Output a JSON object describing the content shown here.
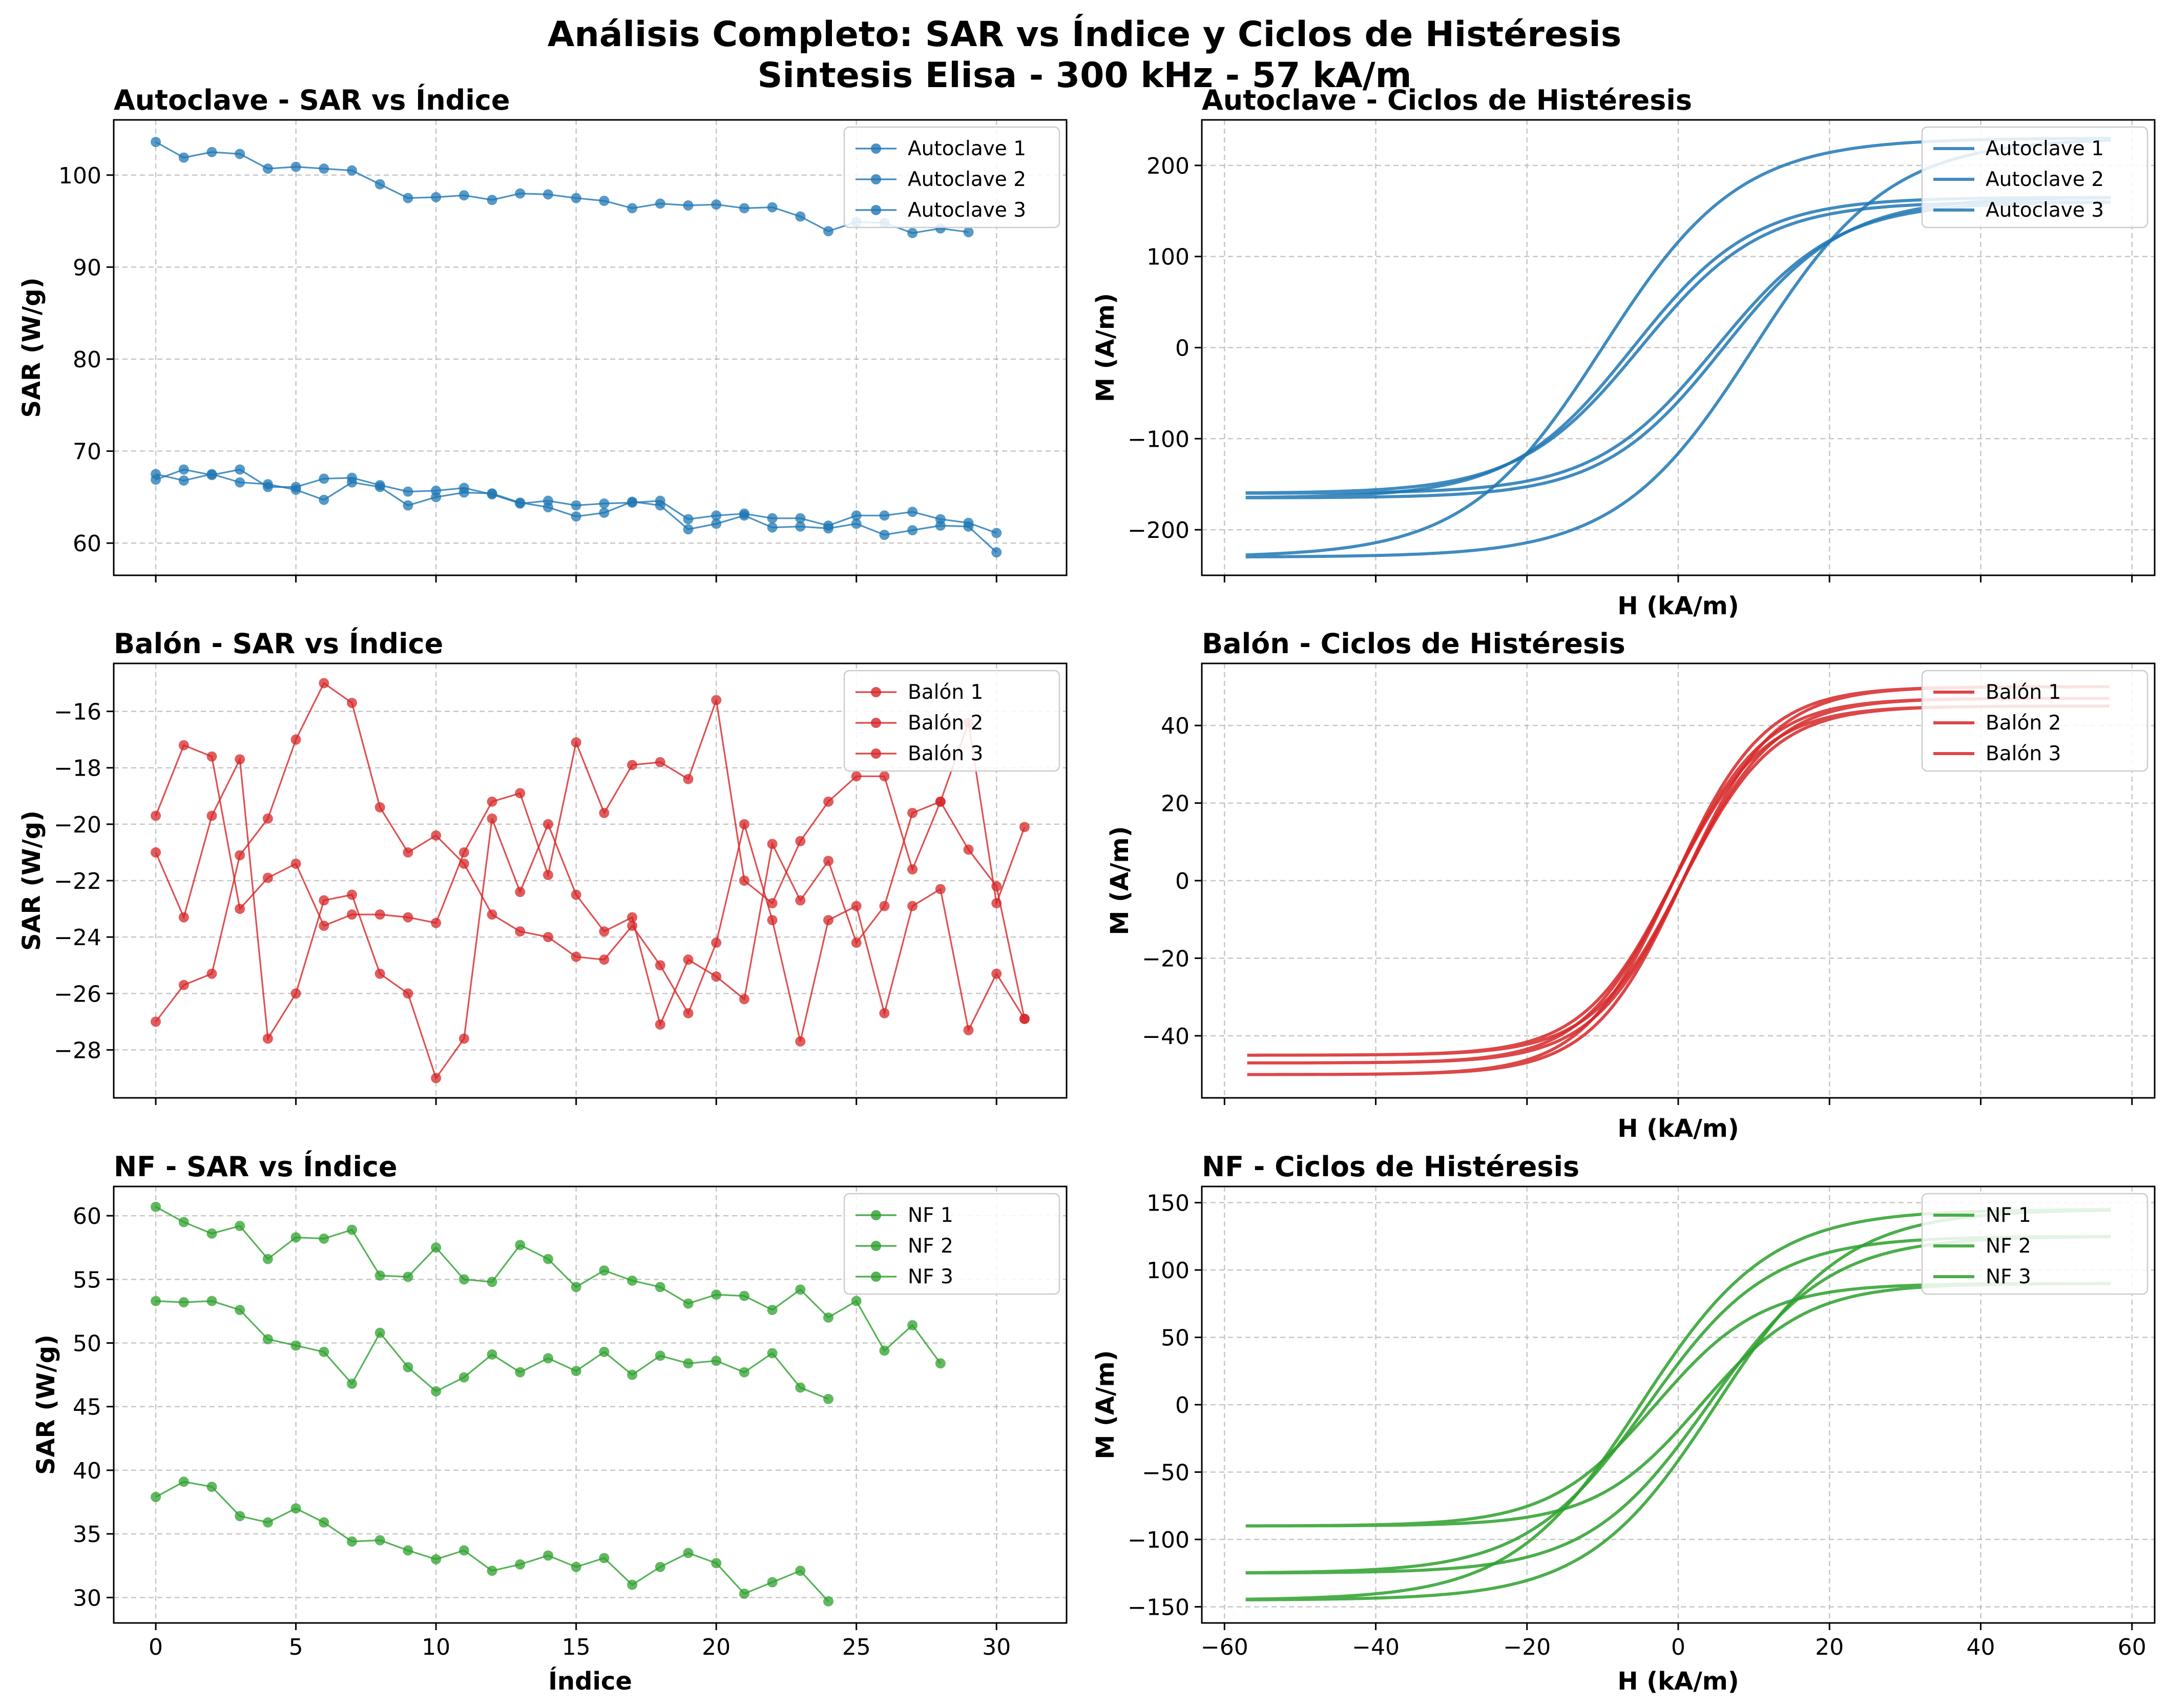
{
  "suptitle": [
    "Análisis Completo: SAR vs Índice y Ciclos de Histéresis",
    "Sintesis Elisa - 300 kHz - 57 kA/m"
  ],
  "chart_data": [
    {
      "type": "line",
      "title": "Autoclave - SAR vs Índice",
      "xlabel": "",
      "ylabel": "SAR (W/g)",
      "xlim": [
        -1.5,
        32.5
      ],
      "ylim": [
        56.5,
        106
      ],
      "xticks": [
        0,
        5,
        10,
        15,
        20,
        25,
        30
      ],
      "show_xticklabels": false,
      "yticks": [
        60,
        70,
        80,
        90,
        100
      ],
      "grid": true,
      "legend": "top-right",
      "color": "#1f77b4",
      "series": [
        {
          "name": "Autoclave 1",
          "x": [
            0,
            1,
            2,
            3,
            4,
            5,
            6,
            7,
            8,
            9,
            10,
            11,
            12,
            13,
            14,
            15,
            16,
            17,
            18,
            19,
            20,
            21,
            22,
            23,
            24,
            25,
            26,
            27,
            28,
            29
          ],
          "values": [
            103.6,
            101.9,
            102.5,
            102.3,
            100.7,
            100.9,
            100.7,
            100.5,
            99.0,
            97.5,
            97.6,
            97.8,
            97.3,
            98.0,
            97.9,
            97.5,
            97.2,
            96.4,
            96.9,
            96.7,
            96.8,
            96.4,
            96.5,
            95.5,
            93.9,
            94.9,
            94.8,
            93.7,
            94.2,
            93.8
          ]
        },
        {
          "name": "Autoclave 2",
          "x": [
            0,
            1,
            2,
            3,
            4,
            5,
            6,
            7,
            8,
            9,
            10,
            11,
            12,
            13,
            14,
            15,
            16,
            17,
            18,
            19,
            20,
            21,
            22,
            23,
            24,
            25,
            26,
            27,
            28,
            29,
            30
          ],
          "values": [
            67.5,
            66.8,
            67.5,
            66.6,
            66.4,
            65.8,
            64.7,
            66.6,
            66.1,
            64.1,
            65.0,
            65.5,
            65.4,
            64.4,
            63.9,
            62.9,
            63.3,
            64.5,
            64.1,
            61.5,
            62.1,
            63.0,
            61.7,
            61.8,
            61.6,
            62.1,
            60.9,
            61.4,
            61.9,
            61.8,
            59.0
          ]
        },
        {
          "name": "Autoclave 3",
          "x": [
            0,
            1,
            2,
            3,
            4,
            5,
            6,
            7,
            8,
            9,
            10,
            11,
            12,
            13,
            14,
            15,
            16,
            17,
            18,
            19,
            20,
            21,
            22,
            23,
            24,
            25,
            26,
            27,
            28,
            29,
            30
          ],
          "values": [
            66.9,
            68.0,
            67.4,
            68.0,
            66.1,
            66.1,
            67.0,
            67.1,
            66.3,
            65.6,
            65.7,
            66.0,
            65.3,
            64.3,
            64.6,
            64.1,
            64.3,
            64.4,
            64.6,
            62.6,
            63.0,
            63.2,
            62.7,
            62.7,
            61.9,
            63.0,
            63.0,
            63.4,
            62.6,
            62.2,
            61.1
          ]
        }
      ]
    },
    {
      "type": "line",
      "title": "Autoclave - Ciclos de Histéresis",
      "xlabel": "H (kA/m)",
      "ylabel": "M (A/m)",
      "xlim": [
        -63,
        63
      ],
      "ylim": [
        -250,
        250
      ],
      "xticks": [
        -60,
        -40,
        -20,
        0,
        20,
        40,
        60
      ],
      "show_xticklabels": false,
      "yticks": [
        -200,
        -100,
        0,
        100,
        200
      ],
      "grid": true,
      "legend": "top-right",
      "color": "#1f77b4",
      "series": [
        {
          "name": "Autoclave 1",
          "Hmax": 57,
          "Ms": 230,
          "a": 18,
          "Hc": 10
        },
        {
          "name": "Autoclave 2",
          "Hmax": 57,
          "Ms": 165,
          "a": 16,
          "Hc": 6
        },
        {
          "name": "Autoclave 3",
          "Hmax": 57,
          "Ms": 160,
          "a": 16,
          "Hc": 5
        }
      ]
    },
    {
      "type": "line",
      "title": "Balón - SAR vs Índice",
      "xlabel": "",
      "ylabel": "SAR (W/g)",
      "xlim": [
        -1.5,
        32.5
      ],
      "ylim": [
        -29.7,
        -14.3
      ],
      "xticks": [
        0,
        5,
        10,
        15,
        20,
        25,
        30
      ],
      "show_xticklabels": false,
      "yticks": [
        -28,
        -26,
        -24,
        -22,
        -20,
        -18,
        -16
      ],
      "grid": true,
      "legend": "top-right",
      "color": "#d62728",
      "series": [
        {
          "name": "Balón 1",
          "x": [
            0,
            1,
            2,
            3,
            4,
            5,
            6,
            7,
            8,
            9,
            10,
            11,
            12,
            13,
            14,
            15,
            16,
            17,
            18,
            19,
            20,
            21,
            22,
            23,
            24,
            25,
            26,
            27,
            28,
            29,
            30,
            31
          ],
          "values": [
            -19.7,
            -17.2,
            -17.6,
            -23.0,
            -21.9,
            -21.4,
            -23.6,
            -23.2,
            -23.2,
            -23.3,
            -23.5,
            -21.0,
            -19.2,
            -18.9,
            -21.8,
            -17.1,
            -19.6,
            -17.9,
            -17.8,
            -18.4,
            -15.6,
            -22.0,
            -22.8,
            -20.6,
            -19.2,
            -18.3,
            -18.3,
            -21.6,
            -19.2,
            -16.4,
            -22.8,
            -20.1
          ]
        },
        {
          "name": "Balón 2",
          "x": [
            0,
            1,
            2,
            3,
            4,
            5,
            6,
            7,
            8,
            9,
            10,
            11,
            12,
            13,
            14,
            15,
            16,
            17,
            18,
            19,
            20,
            21,
            22,
            23,
            24,
            25,
            26,
            27,
            28,
            29,
            30,
            31
          ],
          "values": [
            -21.0,
            -23.3,
            -19.7,
            -17.7,
            -27.6,
            -26.0,
            -22.7,
            -22.5,
            -25.3,
            -26.0,
            -29.0,
            -27.6,
            -19.8,
            -22.4,
            -20.0,
            -22.5,
            -23.8,
            -23.3,
            -27.1,
            -24.8,
            -25.4,
            -26.2,
            -20.7,
            -22.7,
            -21.3,
            -24.2,
            -22.9,
            -19.6,
            -19.2,
            -20.9,
            -22.2,
            -26.9
          ]
        },
        {
          "name": "Balón 3",
          "x": [
            0,
            1,
            2,
            3,
            4,
            5,
            6,
            7,
            8,
            9,
            10,
            11,
            12,
            13,
            14,
            15,
            16,
            17,
            18,
            19,
            20,
            21,
            22,
            23,
            24,
            25,
            26,
            27,
            28,
            29,
            30,
            31
          ],
          "values": [
            -27.0,
            -25.7,
            -25.3,
            -21.1,
            -19.8,
            -17.0,
            -15.0,
            -15.7,
            -19.4,
            -21.0,
            -20.4,
            -21.4,
            -23.2,
            -23.8,
            -24.0,
            -24.7,
            -24.8,
            -23.6,
            -25.0,
            -26.7,
            -24.2,
            -20.0,
            -23.4,
            -27.7,
            -23.4,
            -22.9,
            -26.7,
            -22.9,
            -22.3,
            -27.3,
            -25.3,
            -26.9
          ]
        }
      ]
    },
    {
      "type": "line",
      "title": "Balón - Ciclos de Histéresis",
      "xlabel": "H (kA/m)",
      "ylabel": "M (A/m)",
      "xlim": [
        -63,
        63
      ],
      "ylim": [
        -56,
        56
      ],
      "xticks": [
        -60,
        -40,
        -20,
        0,
        20,
        40,
        60
      ],
      "show_xticklabels": false,
      "yticks": [
        -40,
        -20,
        0,
        20,
        40
      ],
      "grid": true,
      "legend": "top-right",
      "color": "#d62728",
      "series": [
        {
          "name": "Balón 1",
          "Hmax": 57,
          "Ms": 50,
          "a": 12,
          "Hc": 0.6
        },
        {
          "name": "Balón 2",
          "Hmax": 57,
          "Ms": 47,
          "a": 12,
          "Hc": 0.6
        },
        {
          "name": "Balón 3",
          "Hmax": 57,
          "Ms": 45,
          "a": 12,
          "Hc": 0.6
        }
      ]
    },
    {
      "type": "line",
      "title": "NF - SAR vs Índice",
      "xlabel": "Índice",
      "ylabel": "SAR (W/g)",
      "xlim": [
        -1.5,
        32.5
      ],
      "ylim": [
        28,
        62.3
      ],
      "xticks": [
        0,
        5,
        10,
        15,
        20,
        25,
        30
      ],
      "show_xticklabels": true,
      "yticks": [
        30,
        35,
        40,
        45,
        50,
        55,
        60
      ],
      "grid": true,
      "legend": "top-right",
      "color": "#2ca02c",
      "series": [
        {
          "name": "NF 1",
          "x": [
            0,
            1,
            2,
            3,
            4,
            5,
            6,
            7,
            8,
            9,
            10,
            11,
            12,
            13,
            14,
            15,
            16,
            17,
            18,
            19,
            20,
            21,
            22,
            23,
            24,
            25,
            26,
            27,
            28
          ],
          "values": [
            60.7,
            59.5,
            58.6,
            59.2,
            56.6,
            58.3,
            58.2,
            58.9,
            55.3,
            55.2,
            57.5,
            55.0,
            54.8,
            57.7,
            56.6,
            54.4,
            55.7,
            54.9,
            54.4,
            53.1,
            53.8,
            53.7,
            52.6,
            54.2,
            52.0,
            53.3,
            49.4,
            51.4,
            48.4
          ]
        },
        {
          "name": "NF 2",
          "x": [
            0,
            1,
            2,
            3,
            4,
            5,
            6,
            7,
            8,
            9,
            10,
            11,
            12,
            13,
            14,
            15,
            16,
            17,
            18,
            19,
            20,
            21,
            22,
            23,
            24
          ],
          "values": [
            53.3,
            53.2,
            53.3,
            52.6,
            50.3,
            49.8,
            49.3,
            46.8,
            50.8,
            48.1,
            46.2,
            47.3,
            49.1,
            47.7,
            48.8,
            47.8,
            49.3,
            47.5,
            49.0,
            48.4,
            48.6,
            47.7,
            49.2,
            46.5,
            45.6
          ]
        },
        {
          "name": "NF 3",
          "x": [
            0,
            1,
            2,
            3,
            4,
            5,
            6,
            7,
            8,
            9,
            10,
            11,
            12,
            13,
            14,
            15,
            16,
            17,
            18,
            19,
            20,
            21,
            22,
            23,
            24
          ],
          "values": [
            37.9,
            39.1,
            38.7,
            36.4,
            35.9,
            37.0,
            35.9,
            34.4,
            34.5,
            33.7,
            33.0,
            33.7,
            32.1,
            32.6,
            33.3,
            32.4,
            33.1,
            31.0,
            32.4,
            33.5,
            32.7,
            30.3,
            31.2,
            32.1,
            29.7
          ]
        }
      ]
    },
    {
      "type": "line",
      "title": "NF - Ciclos de Histéresis",
      "xlabel": "H (kA/m)",
      "ylabel": "M (A/m)",
      "xlim": [
        -63,
        63
      ],
      "ylim": [
        -162,
        162
      ],
      "xticks": [
        -60,
        -40,
        -20,
        0,
        20,
        40,
        60
      ],
      "show_xticklabels": true,
      "yticks": [
        -150,
        -100,
        -50,
        0,
        50,
        100,
        150
      ],
      "grid": true,
      "legend": "top-right",
      "color": "#2ca02c",
      "series": [
        {
          "name": "NF 1",
          "Hmax": 57,
          "Ms": 145,
          "a": 17,
          "Hc": 5
        },
        {
          "name": "NF 2",
          "Hmax": 57,
          "Ms": 125,
          "a": 16,
          "Hc": 4
        },
        {
          "name": "NF 3",
          "Hmax": 57,
          "Ms": 90,
          "a": 14,
          "Hc": 3
        }
      ]
    }
  ]
}
